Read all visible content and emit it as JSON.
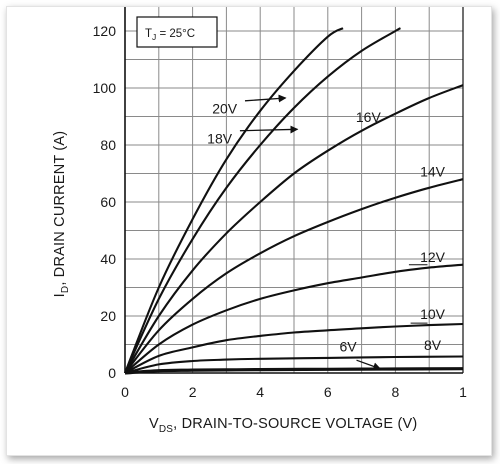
{
  "chart_data": {
    "type": "line",
    "title": "",
    "annotation": "T_J = 25°C",
    "xlabel": "V_DS, DRAIN-TO-SOURCE VOLTAGE (V)",
    "ylabel": "I_D, DRAIN CURRENT (A)",
    "xlim": [
      0,
      10
    ],
    "ylim": [
      0,
      120
    ],
    "x_ticks": [
      "0",
      "2",
      "4",
      "6",
      "8",
      "1"
    ],
    "y_ticks": [
      "0",
      "20",
      "40",
      "60",
      "80",
      "100",
      "120"
    ],
    "grid": true,
    "series": [
      {
        "name": "6V",
        "x": [
          0,
          1,
          2,
          3,
          4,
          6,
          8,
          10
        ],
        "y": [
          0,
          0.8,
          1.0,
          1.1,
          1.2,
          1.3,
          1.4,
          1.5
        ]
      },
      {
        "name": "8V",
        "x": [
          0,
          1,
          2,
          3,
          4,
          6,
          8,
          10
        ],
        "y": [
          0,
          3.0,
          4.2,
          4.7,
          5.0,
          5.3,
          5.6,
          5.8
        ]
      },
      {
        "name": "10V",
        "x": [
          0,
          1,
          2,
          3,
          4,
          5,
          6,
          7,
          8,
          9,
          10
        ],
        "y": [
          0,
          6,
          9,
          11.5,
          13,
          14.2,
          15,
          15.7,
          16.3,
          16.8,
          17.2
        ]
      },
      {
        "name": "12V",
        "x": [
          0,
          1,
          2,
          3,
          4,
          5,
          6,
          7,
          8,
          9,
          10
        ],
        "y": [
          0,
          10,
          17,
          22,
          26,
          29,
          31.5,
          33.5,
          35.5,
          37,
          38
        ]
      },
      {
        "name": "14V",
        "x": [
          0,
          1,
          2,
          3,
          4,
          5,
          6,
          7,
          8,
          9,
          10
        ],
        "y": [
          0,
          15,
          26,
          35,
          42,
          48,
          53,
          57.5,
          61.5,
          65,
          68
        ]
      },
      {
        "name": "16V",
        "x": [
          0,
          1,
          2,
          3,
          4,
          5,
          6,
          7,
          8,
          9,
          10
        ],
        "y": [
          0,
          20,
          36,
          49,
          60,
          70,
          78,
          85,
          91,
          96.5,
          101
        ]
      },
      {
        "name": "18V",
        "x": [
          0,
          1,
          2,
          3,
          4,
          5,
          6,
          7,
          8,
          8.15
        ],
        "y": [
          0,
          26,
          47,
          65,
          80,
          93,
          104,
          113,
          120,
          121
        ]
      },
      {
        "name": "20V",
        "x": [
          0,
          1,
          2,
          3,
          4,
          5,
          6,
          6.45
        ],
        "y": [
          0,
          30,
          54,
          75,
          92,
          106,
          118,
          121
        ]
      }
    ],
    "arrow_labels": [
      "20V",
      "18V"
    ]
  }
}
